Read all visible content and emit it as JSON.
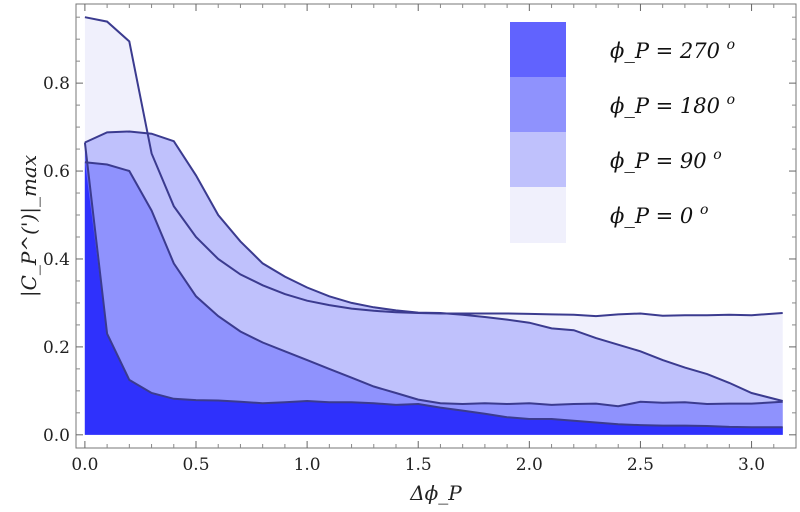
{
  "chart_data": {
    "type": "area",
    "title": "",
    "xlabel": "Δϕ_P",
    "ylabel": "|C_P^(')|_max",
    "xlim": [
      -0.04,
      3.2
    ],
    "ylim": [
      -0.03,
      0.98
    ],
    "xticks": [
      0.0,
      0.5,
      1.0,
      1.5,
      2.0,
      2.5,
      3.0
    ],
    "xtick_labels": [
      "0.0",
      "0.5",
      "1.0",
      "1.5",
      "2.0",
      "2.5",
      "3.0"
    ],
    "yticks": [
      0.0,
      0.2,
      0.4,
      0.6,
      0.8
    ],
    "ytick_labels": [
      "0.0",
      "0.2",
      "0.4",
      "0.6",
      "0.8"
    ],
    "grid": false,
    "legend_position": "top-right",
    "series": [
      {
        "name": "ϕ_P = 0 ",
        "sup": "o",
        "fill": "#f0f0fc",
        "x": [
          0,
          0.1,
          0.2,
          0.3,
          0.4,
          0.5,
          0.6,
          0.7,
          0.8,
          0.9,
          1.0,
          1.1,
          1.2,
          1.3,
          1.4,
          1.5,
          1.6,
          1.7,
          1.8,
          1.9,
          2.0,
          2.1,
          2.2,
          2.3,
          2.4,
          2.5,
          2.6,
          2.7,
          2.8,
          2.9,
          3.0,
          3.14
        ],
        "values": [
          0.95,
          0.94,
          0.895,
          0.64,
          0.52,
          0.45,
          0.4,
          0.365,
          0.34,
          0.32,
          0.305,
          0.295,
          0.287,
          0.282,
          0.279,
          0.277,
          0.276,
          0.276,
          0.276,
          0.276,
          0.275,
          0.274,
          0.273,
          0.27,
          0.274,
          0.276,
          0.271,
          0.272,
          0.272,
          0.273,
          0.272,
          0.277
        ]
      },
      {
        "name": "ϕ_P = 90 ",
        "sup": "o",
        "fill": "#bfc1fc",
        "x": [
          0,
          0.1,
          0.2,
          0.3,
          0.4,
          0.5,
          0.6,
          0.7,
          0.8,
          0.9,
          1.0,
          1.1,
          1.2,
          1.3,
          1.4,
          1.5,
          1.6,
          1.7,
          1.8,
          1.9,
          2.0,
          2.1,
          2.2,
          2.3,
          2.4,
          2.5,
          2.6,
          2.7,
          2.8,
          2.9,
          3.0,
          3.14
        ],
        "values": [
          0.665,
          0.688,
          0.69,
          0.685,
          0.668,
          0.59,
          0.5,
          0.44,
          0.39,
          0.36,
          0.335,
          0.315,
          0.3,
          0.29,
          0.283,
          0.278,
          0.277,
          0.273,
          0.268,
          0.262,
          0.255,
          0.242,
          0.238,
          0.22,
          0.205,
          0.19,
          0.17,
          0.153,
          0.138,
          0.118,
          0.095,
          0.077
        ]
      },
      {
        "name": "ϕ_P = 180 ",
        "sup": "o",
        "fill": "#8f92fd",
        "x": [
          0,
          0.1,
          0.2,
          0.3,
          0.4,
          0.5,
          0.6,
          0.7,
          0.8,
          0.9,
          1.0,
          1.1,
          1.2,
          1.3,
          1.4,
          1.5,
          1.6,
          1.7,
          1.8,
          1.9,
          2.0,
          2.1,
          2.2,
          2.3,
          2.4,
          2.5,
          2.6,
          2.7,
          2.8,
          2.9,
          3.0,
          3.14
        ],
        "values": [
          0.62,
          0.615,
          0.6,
          0.51,
          0.39,
          0.315,
          0.27,
          0.235,
          0.21,
          0.19,
          0.17,
          0.15,
          0.13,
          0.11,
          0.095,
          0.08,
          0.072,
          0.07,
          0.072,
          0.07,
          0.072,
          0.068,
          0.07,
          0.071,
          0.065,
          0.075,
          0.073,
          0.074,
          0.07,
          0.071,
          0.071,
          0.075
        ]
      },
      {
        "name": "ϕ_P = 270 ",
        "sup": "o",
        "fill": "#6163fe",
        "x": [
          0,
          0.1,
          0.2,
          0.3,
          0.4,
          0.5,
          0.6,
          0.7,
          0.8,
          0.9,
          1.0,
          1.1,
          1.2,
          1.3,
          1.4,
          1.5,
          1.6,
          1.7,
          1.8,
          1.9,
          2.0,
          2.1,
          2.2,
          2.3,
          2.4,
          2.5,
          2.6,
          2.7,
          2.8,
          2.9,
          3.0,
          3.14
        ],
        "values": [
          0.665,
          0.23,
          0.125,
          0.095,
          0.082,
          0.079,
          0.078,
          0.075,
          0.072,
          0.074,
          0.077,
          0.074,
          0.074,
          0.072,
          0.068,
          0.07,
          0.062,
          0.055,
          0.048,
          0.04,
          0.036,
          0.036,
          0.032,
          0.028,
          0.024,
          0.022,
          0.021,
          0.021,
          0.02,
          0.018,
          0.017,
          0.017
        ]
      }
    ],
    "base_fill": "#2f31fc"
  }
}
